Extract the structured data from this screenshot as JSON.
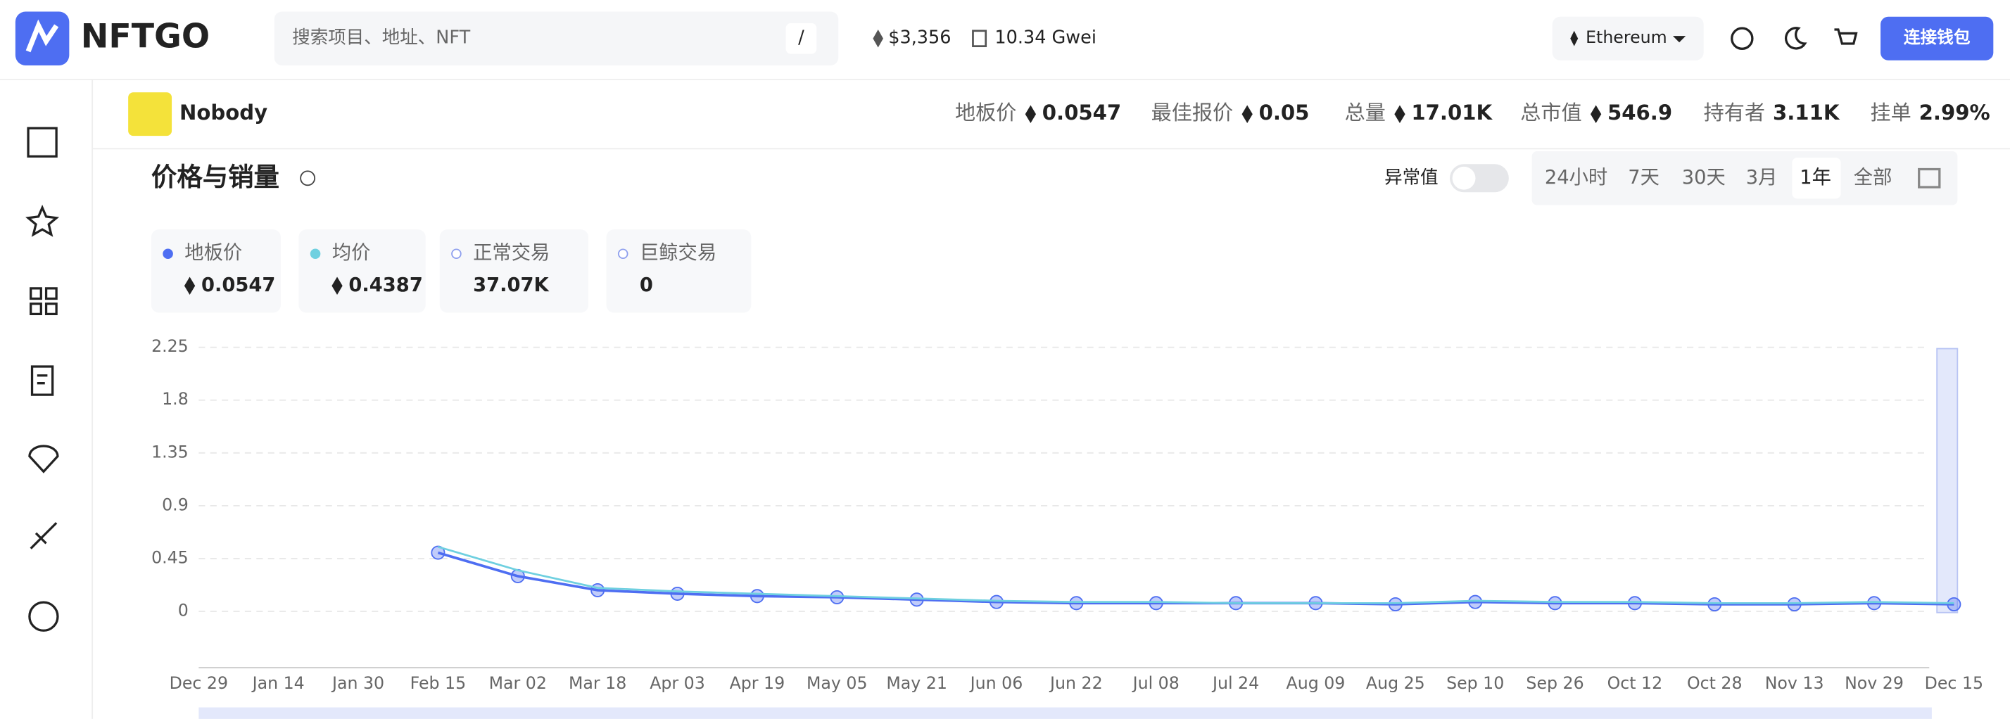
{
  "header": {
    "logo": "NFTGO",
    "search_placeholder": "搜索项目、地址、NFT",
    "search_shortcut": "/",
    "eth_price": "$3,356",
    "gas": "10.34 Gwei",
    "network": "Ethereum",
    "connect_button": "连接钱包"
  },
  "collection": {
    "name": "Nobody",
    "stats": [
      {
        "label": "地板价",
        "value": "0.0547",
        "eth": true
      },
      {
        "label": "最佳报价",
        "value": "0.05",
        "eth": true
      },
      {
        "label": "总量",
        "value": "17.01K",
        "eth": true
      },
      {
        "label": "总市值",
        "value": "546.9",
        "eth": true
      },
      {
        "label": "持有者",
        "value": "3.11K",
        "eth": false
      },
      {
        "label": "挂单",
        "value": "2.99%",
        "eth": false
      }
    ]
  },
  "chart_panel": {
    "title": "价格与销量",
    "outlier_toggle": "异常值",
    "ranges": [
      "24小时",
      "7天",
      "30天",
      "3月",
      "1年",
      "全部"
    ],
    "active_range": "1年",
    "cards": [
      {
        "value": "0.0547",
        "eth": true
      },
      {
        "value": "0.4387",
        "eth": true
      },
      {
        "label": "正常交易",
        "value": "37.07K",
        "eth": false
      },
      {
        "label": "巨鲸交易",
        "value": "0",
        "eth": false
      }
    ]
  },
  "chart_data": {
    "type": "line",
    "categories": [
      "Dec 29",
      "Jan 14",
      "Jan 30",
      "Feb 15",
      "Mar 02",
      "Mar 18",
      "Apr 03",
      "Apr 19",
      "May 05",
      "May 21",
      "Jun 06",
      "Jun 22",
      "Jul 08",
      "Jul 24",
      "Aug 09",
      "Aug 25",
      "Sep 10",
      "Sep 26",
      "Oct 12",
      "Oct 28",
      "Nov 13",
      "Nov 29",
      "Dec 15"
    ],
    "series": [
      {
        "name": "地板价",
        "color": "#4e6ef2",
        "values": [
          null,
          null,
          null,
          0.5,
          0.3,
          0.18,
          0.15,
          0.13,
          0.12,
          0.1,
          0.08,
          0.07,
          0.07,
          0.07,
          0.07,
          0.06,
          0.08,
          0.07,
          0.07,
          0.06,
          0.06,
          0.07,
          0.06
        ]
      },
      {
        "name": "均价",
        "color": "#6fd0e0",
        "values": [
          null,
          null,
          null,
          0.55,
          0.35,
          0.2,
          0.17,
          0.15,
          0.13,
          0.11,
          0.09,
          0.08,
          0.08,
          0.07,
          0.07,
          0.07,
          0.09,
          0.08,
          0.08,
          0.07,
          0.07,
          0.08,
          0.07
        ]
      }
    ],
    "ylim": [
      -0.48,
      2.25
    ],
    "yticks": [
      0,
      0.45,
      0.9,
      1.35,
      1.8,
      2.25
    ],
    "grid": true
  }
}
